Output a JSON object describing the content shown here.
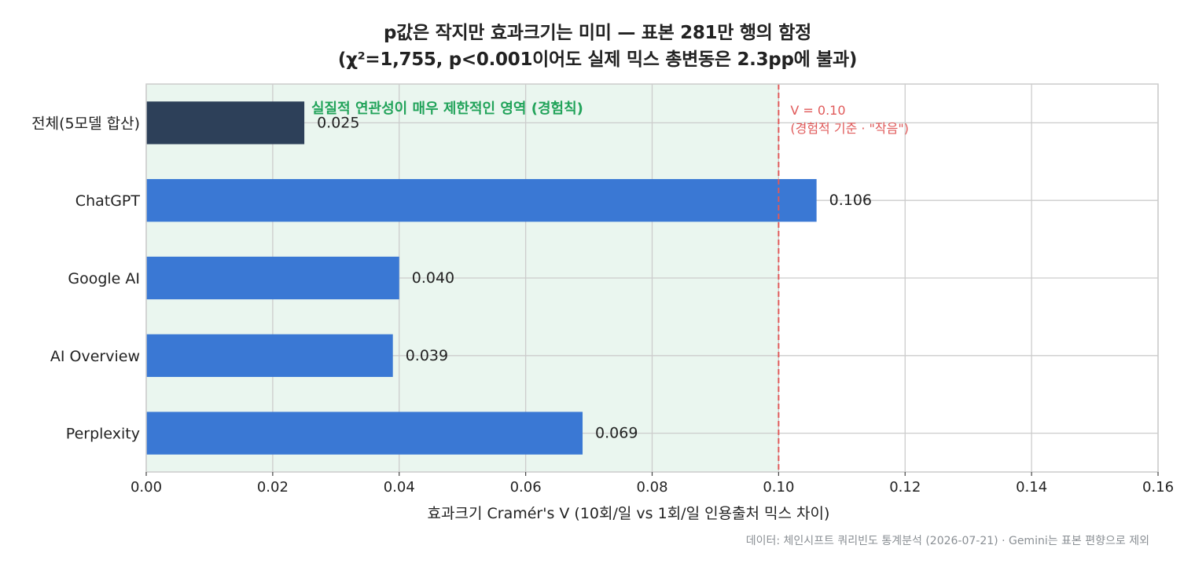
{
  "header": {
    "title_line1": "p값은 작지만 효과크기는 미미 — 표본 281만 행의 함정",
    "title_line2": "(χ²=1,755, p<0.001이어도 실제 믹스 총변동은 2.3pp에 불과)"
  },
  "footer": {
    "source": "데이터: 체인시프트 쿼리빈도 통계분석 (2026-07-21) · Gemini는 표본 편향으로 제외"
  },
  "colors": {
    "bar_total": "#2d4059",
    "bar_model": "#3a78d4",
    "threshold_line": "#e05a5a",
    "shade_fill": "#eaf6ef",
    "shade_text": "#22a35a",
    "grid": "#cccccc"
  },
  "chart_data": {
    "type": "bar",
    "orientation": "horizontal",
    "categories": [
      "전체(5모델 합산)",
      "ChatGPT",
      "Google AI",
      "AI Overview",
      "Perplexity"
    ],
    "values": [
      0.025,
      0.106,
      0.04,
      0.039,
      0.069
    ],
    "value_labels": [
      "0.025",
      "0.106",
      "0.040",
      "0.039",
      "0.069"
    ],
    "xlabel": "효과크기 Cramér's V (10회/일 vs 1회/일 인용출처 믹스 차이)",
    "ylabel": "",
    "xlim": [
      0,
      0.16
    ],
    "xticks": [
      0.0,
      0.02,
      0.04,
      0.06,
      0.08,
      0.1,
      0.12,
      0.14,
      0.16
    ],
    "xtick_labels": [
      "0.00",
      "0.02",
      "0.04",
      "0.06",
      "0.08",
      "0.10",
      "0.12",
      "0.14",
      "0.16"
    ],
    "grid": true,
    "shaded_region": {
      "from": 0,
      "to": 0.1,
      "label": "실질적 연관성이 매우 제한적인 영역 (경험칙)"
    },
    "reference_line": {
      "x": 0.1,
      "label_line1": "V = 0.10",
      "label_line2": "(경험적 기준 · \"작음\")"
    }
  }
}
